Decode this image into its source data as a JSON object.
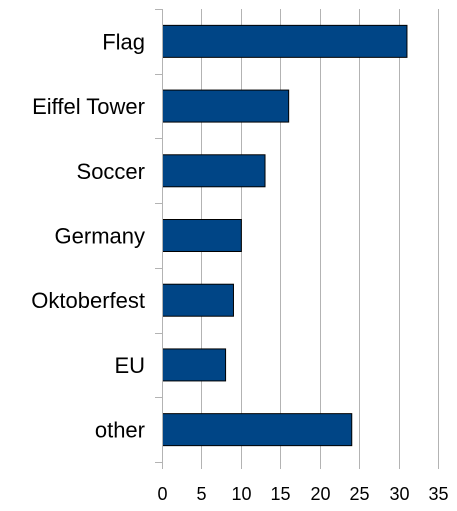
{
  "chart_data": {
    "type": "bar",
    "orientation": "horizontal",
    "categories": [
      "Flag",
      "Eiffel Tower",
      "Soccer",
      "Germany",
      "Oktoberfest",
      "EU",
      "other"
    ],
    "values": [
      31,
      16,
      13,
      10,
      9,
      8,
      24
    ],
    "xlim": [
      0,
      35
    ],
    "x_ticks": [
      0,
      5,
      10,
      15,
      20,
      25,
      30,
      35
    ],
    "x_tick_labels": [
      "0",
      "5",
      "10",
      "15",
      "20",
      "25",
      "30",
      "35"
    ],
    "grid": true,
    "legend": false,
    "title": "",
    "xlabel": "",
    "ylabel": "",
    "bar_color": "#004586",
    "bar_edge_color": "#000000",
    "grid_color": "#b3b3b3"
  }
}
